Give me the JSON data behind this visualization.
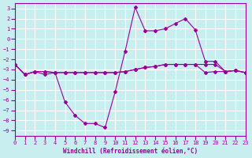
{
  "xlabel": "Windchill (Refroidissement éolien,°C)",
  "ylabel": "",
  "xlim": [
    0,
    23
  ],
  "ylim": [
    -9.5,
    3.5
  ],
  "yticks": [
    3,
    2,
    1,
    0,
    -1,
    -2,
    -3,
    -4,
    -5,
    -6,
    -7,
    -8,
    -9
  ],
  "xticks": [
    0,
    1,
    2,
    3,
    4,
    5,
    6,
    7,
    8,
    9,
    10,
    11,
    12,
    13,
    14,
    15,
    16,
    17,
    18,
    19,
    20,
    21,
    22,
    23
  ],
  "background_color": "#c8eef0",
  "grid_color": "#ffffff",
  "line_color": "#990099",
  "curves": [
    {
      "x": [
        0,
        1,
        2,
        3,
        4,
        5,
        6,
        7,
        8,
        9,
        10,
        11,
        12,
        13,
        14,
        15,
        16,
        17,
        18,
        19,
        20,
        21,
        22,
        23
      ],
      "y": [
        -2.5,
        -3.5,
        -3.2,
        -3.5,
        -3.3,
        -6.2,
        -7.5,
        -8.3,
        -8.3,
        -8.7,
        -5.2,
        -1.2,
        3.1,
        0.8,
        0.8,
        1.0,
        1.5,
        2.0,
        0.9,
        -2.2,
        -2.2,
        -3.2,
        -3.1,
        -3.3
      ]
    },
    {
      "x": [
        0,
        1,
        2,
        3,
        4,
        5,
        6,
        7,
        8,
        9,
        10,
        11,
        12,
        13,
        14,
        15,
        16,
        17,
        18,
        19,
        20,
        21,
        22,
        23
      ],
      "y": [
        -2.5,
        -3.5,
        -3.2,
        -3.2,
        -3.3,
        -3.3,
        -3.3,
        -3.3,
        -3.3,
        -3.3,
        -3.3,
        -3.2,
        -3.0,
        -2.8,
        -2.7,
        -2.5,
        -2.5,
        -2.5,
        -2.5,
        -2.5,
        -2.5,
        -3.2,
        -3.1,
        -3.3
      ]
    },
    {
      "x": [
        0,
        1,
        2,
        3,
        4,
        5,
        6,
        7,
        8,
        9,
        10,
        11,
        12,
        13,
        14,
        15,
        16,
        17,
        18,
        19,
        20,
        21,
        22,
        23
      ],
      "y": [
        -2.5,
        -3.5,
        -3.2,
        -3.2,
        -3.3,
        -3.3,
        -3.3,
        -3.3,
        -3.3,
        -3.3,
        -3.3,
        -3.2,
        -3.0,
        -2.8,
        -2.7,
        -2.5,
        -2.5,
        -2.5,
        -2.5,
        -3.3,
        -3.2,
        -3.2,
        -3.1,
        -3.3
      ]
    }
  ]
}
